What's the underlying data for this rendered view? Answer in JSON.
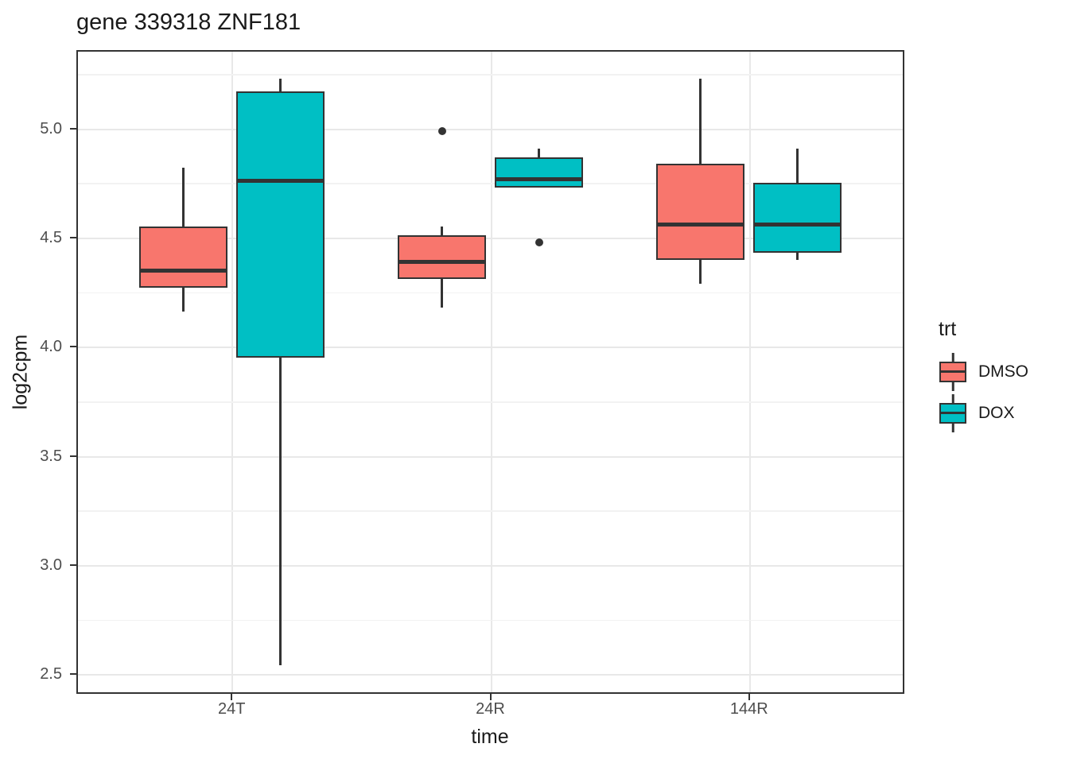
{
  "title": "gene 339318 ZNF181",
  "axes": {
    "x": {
      "title": "time",
      "tick_labels": [
        "24T",
        "24R",
        "144R"
      ]
    },
    "y": {
      "title": "log2cpm",
      "tick_labels": [
        "5.0",
        "4.5",
        "4.0",
        "3.5",
        "3.0",
        "2.5"
      ]
    }
  },
  "legend": {
    "title": "trt",
    "entries": [
      {
        "label": "DMSO",
        "color": "#F8766D"
      },
      {
        "label": "DOX",
        "color": "#00BFC4"
      }
    ]
  },
  "colors": {
    "dmso_fill": "#F8766D",
    "dox_fill": "#00BFC4",
    "line": "#333333",
    "grid_major": "#e8e8e8",
    "grid_minor": "#f2f2f2",
    "tick_text": "#4d4d4d"
  },
  "chart_data": {
    "type": "boxplot",
    "title": "gene 339318 ZNF181",
    "xlabel": "time",
    "ylabel": "log2cpm",
    "categories": [
      "24T",
      "24R",
      "144R"
    ],
    "ylim": [
      2.41,
      5.36
    ],
    "y_major_ticks": [
      5.0,
      4.5,
      4.0,
      3.5,
      3.0,
      2.5
    ],
    "y_minor_ticks": [
      5.25,
      4.75,
      4.25,
      3.75,
      3.25,
      2.75
    ],
    "grid": true,
    "legend_position": "right",
    "series": [
      {
        "name": "DMSO",
        "color": "#F8766D",
        "boxes": [
          {
            "category": "24T",
            "whisker_low": 4.16,
            "q1": 4.27,
            "median": 4.35,
            "q3": 4.55,
            "whisker_high": 4.82,
            "outliers": []
          },
          {
            "category": "24R",
            "whisker_low": 4.18,
            "q1": 4.31,
            "median": 4.39,
            "q3": 4.51,
            "whisker_high": 4.55,
            "outliers": [
              4.99
            ]
          },
          {
            "category": "144R",
            "whisker_low": 4.29,
            "q1": 4.4,
            "median": 4.56,
            "q3": 4.84,
            "whisker_high": 5.23,
            "outliers": []
          }
        ]
      },
      {
        "name": "DOX",
        "color": "#00BFC4",
        "boxes": [
          {
            "category": "24T",
            "whisker_low": 2.54,
            "q1": 3.95,
            "median": 4.76,
            "q3": 5.17,
            "whisker_high": 5.23,
            "outliers": []
          },
          {
            "category": "24R",
            "whisker_low": 4.73,
            "q1": 4.73,
            "median": 4.77,
            "q3": 4.87,
            "whisker_high": 4.91,
            "outliers": [
              4.48
            ]
          },
          {
            "category": "144R",
            "whisker_low": 4.4,
            "q1": 4.43,
            "median": 4.56,
            "q3": 4.75,
            "whisker_high": 4.91,
            "outliers": []
          }
        ]
      }
    ]
  }
}
